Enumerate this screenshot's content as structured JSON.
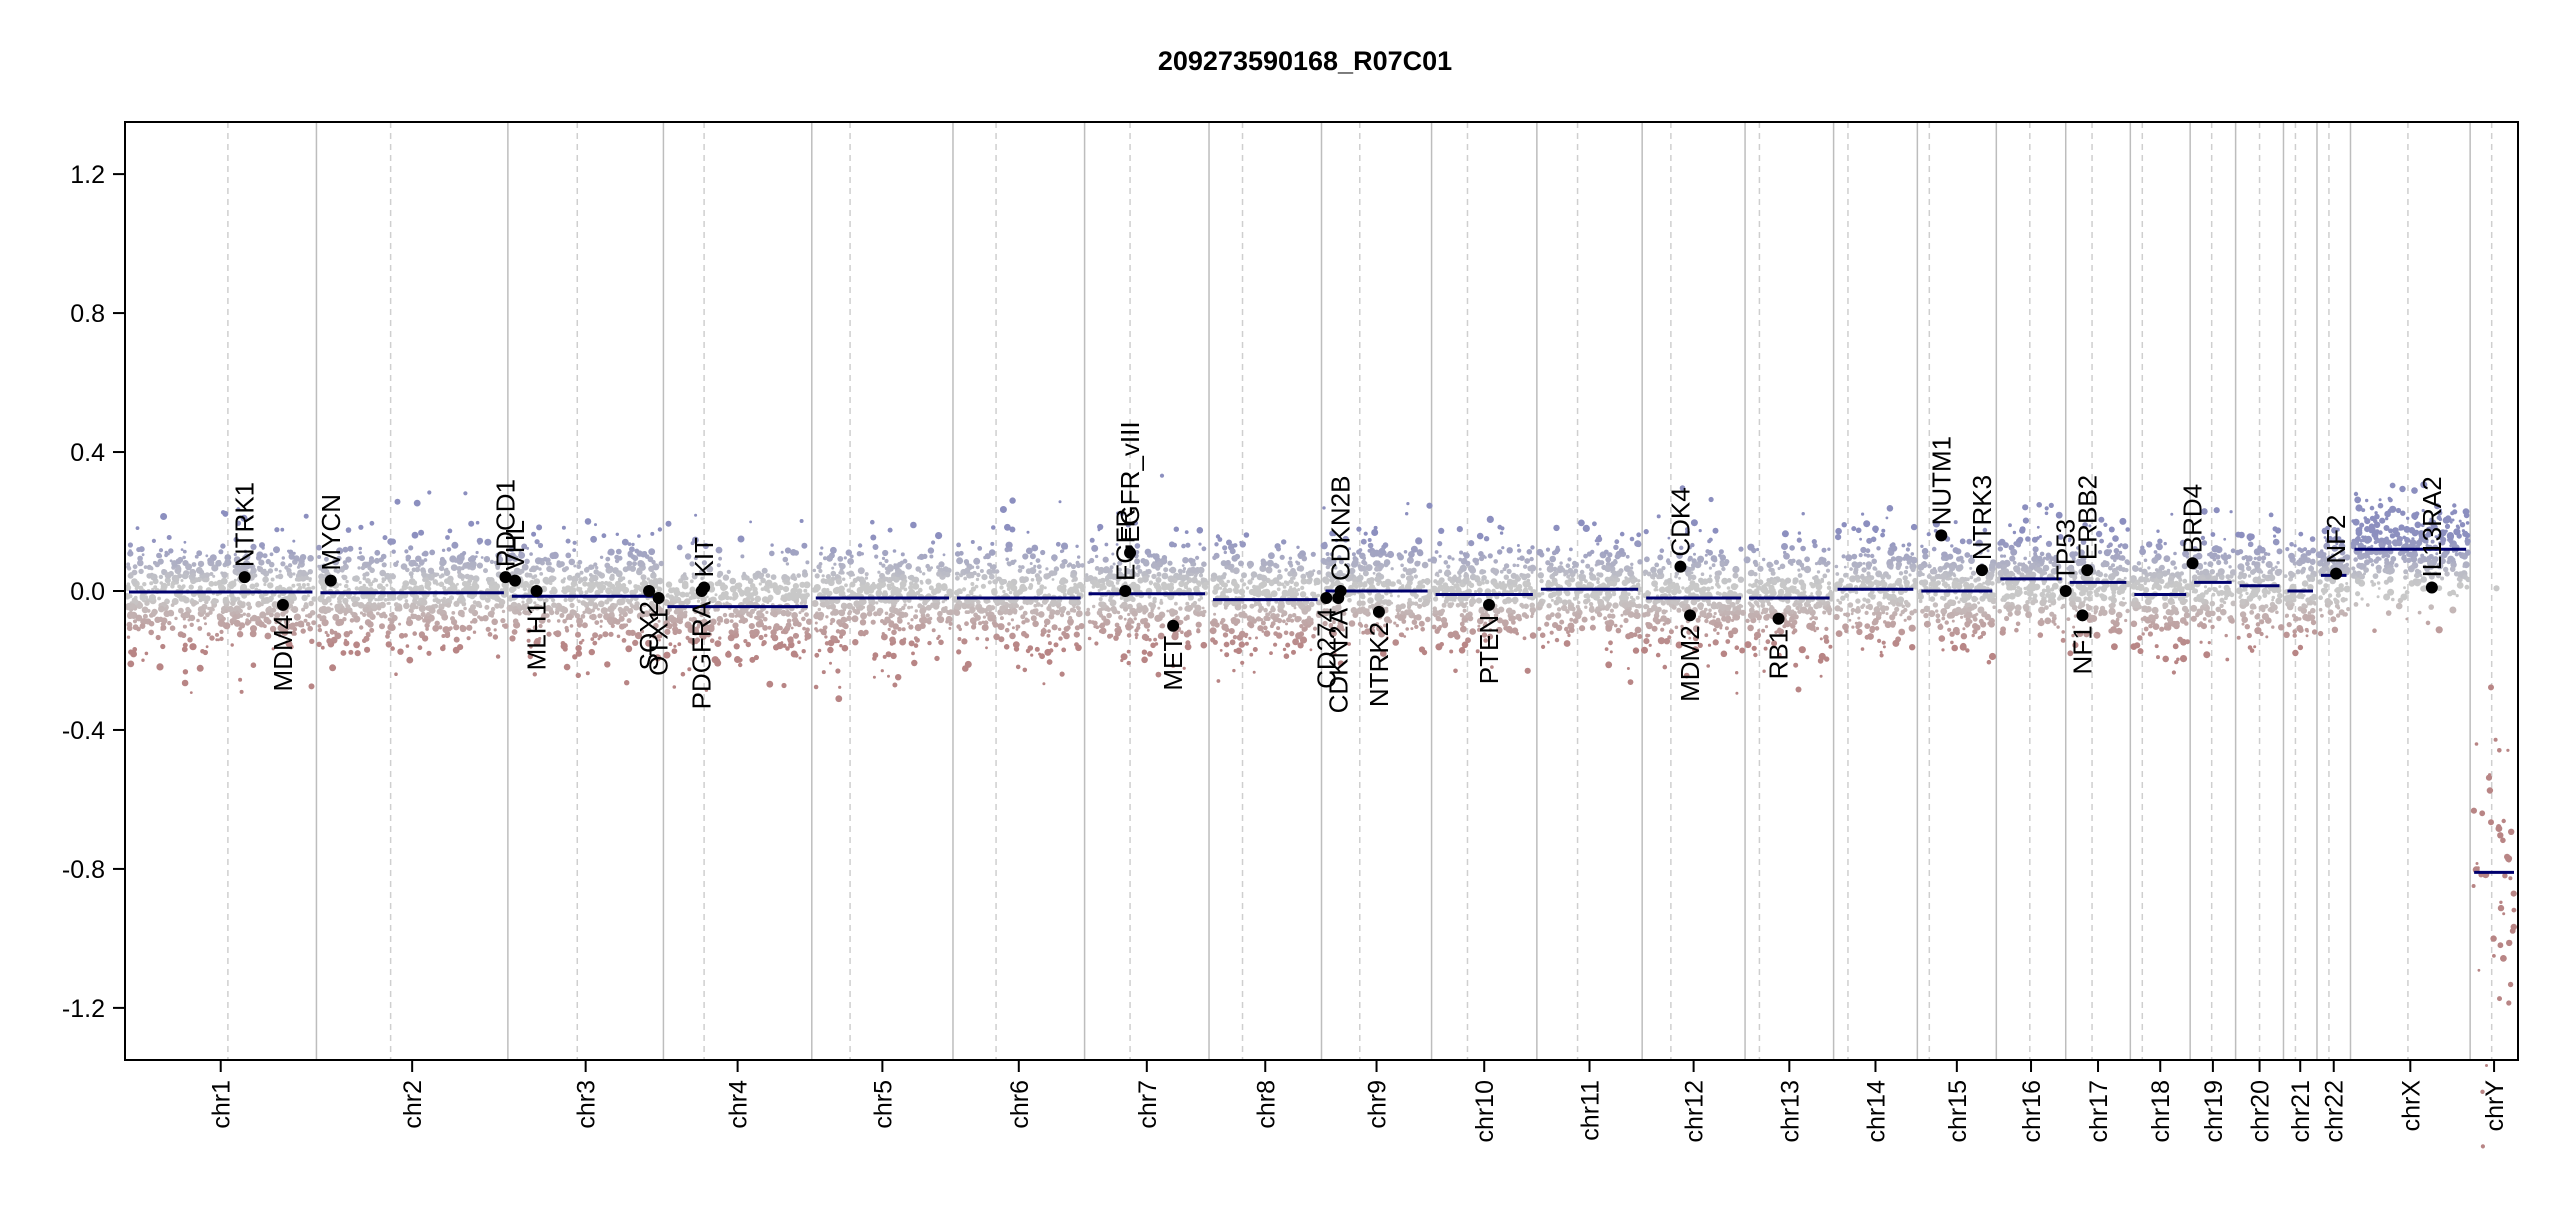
{
  "chart_data": {
    "type": "scatter",
    "title": "209273590168_R07C01",
    "xlabel": "",
    "ylabel": "",
    "ylim": [
      -1.35,
      1.35
    ],
    "yticks": [
      -1.2,
      -0.8,
      -0.4,
      0.0,
      0.4,
      0.8,
      1.2
    ],
    "ytick_labels": [
      "-1.2",
      "-0.8",
      "-0.4",
      "0.0",
      "0.4",
      "0.8",
      "1.2"
    ],
    "grid": false,
    "legend": "none",
    "colors": {
      "gain": "#8c8fbf",
      "neutral": "#c8c8c8",
      "loss": "#b88585",
      "segment": "#00006e",
      "gene_point": "#000000",
      "boundary": "#bdbdbd",
      "centromere": "#cfcfcf"
    },
    "chromosomes": [
      {
        "name": "chr1",
        "label": "chr1",
        "start": 0.0,
        "end": 0.08,
        "centromere": 0.043,
        "segment": -0.003
      },
      {
        "name": "chr2",
        "label": "chr2",
        "start": 0.08,
        "end": 0.16,
        "centromere": 0.111,
        "segment": -0.005
      },
      {
        "name": "chr3",
        "label": "chr3",
        "start": 0.16,
        "end": 0.225,
        "centromere": 0.189,
        "segment": -0.015
      },
      {
        "name": "chr4",
        "label": "chr4",
        "start": 0.225,
        "end": 0.287,
        "centromere": 0.242,
        "segment": -0.045
      },
      {
        "name": "chr5",
        "label": "chr5",
        "start": 0.287,
        "end": 0.346,
        "centromere": 0.303,
        "segment": -0.02
      },
      {
        "name": "chr6",
        "label": "chr6",
        "start": 0.346,
        "end": 0.401,
        "centromere": 0.364,
        "segment": -0.02
      },
      {
        "name": "chr7",
        "label": "chr7",
        "start": 0.401,
        "end": 0.453,
        "centromere": 0.42,
        "segment": -0.008
      },
      {
        "name": "chr8",
        "label": "chr8",
        "start": 0.453,
        "end": 0.5,
        "centromere": 0.467,
        "segment": -0.025
      },
      {
        "name": "chr9",
        "label": "chr9",
        "start": 0.5,
        "end": 0.546,
        "centromere": 0.516,
        "segment": 0.0
      },
      {
        "name": "chr10",
        "label": "chr10",
        "start": 0.546,
        "end": 0.59,
        "centromere": 0.561,
        "segment": -0.01
      },
      {
        "name": "chr11",
        "label": "chr11",
        "start": 0.59,
        "end": 0.634,
        "centromere": 0.607,
        "segment": 0.005
      },
      {
        "name": "chr12",
        "label": "chr12",
        "start": 0.634,
        "end": 0.677,
        "centromere": 0.646,
        "segment": -0.02
      },
      {
        "name": "chr13",
        "label": "chr13",
        "start": 0.677,
        "end": 0.714,
        "centromere": 0.683,
        "segment": -0.02
      },
      {
        "name": "chr14",
        "label": "chr14",
        "start": 0.714,
        "end": 0.749,
        "centromere": 0.72,
        "segment": 0.005
      },
      {
        "name": "chr15",
        "label": "chr15",
        "start": 0.749,
        "end": 0.782,
        "centromere": 0.754,
        "segment": 0.0
      },
      {
        "name": "chr16",
        "label": "chr16",
        "start": 0.782,
        "end": 0.811,
        "centromere": 0.796,
        "segment": 0.035
      },
      {
        "name": "chr17",
        "label": "chr17",
        "start": 0.811,
        "end": 0.838,
        "centromere": 0.822,
        "segment": 0.025
      },
      {
        "name": "chr18",
        "label": "chr18",
        "start": 0.838,
        "end": 0.863,
        "centromere": 0.843,
        "segment": -0.01
      },
      {
        "name": "chr19",
        "label": "chr19",
        "start": 0.863,
        "end": 0.882,
        "centromere": 0.872,
        "segment": 0.025
      },
      {
        "name": "chr20",
        "label": "chr20",
        "start": 0.882,
        "end": 0.902,
        "centromere": 0.892,
        "segment": 0.015
      },
      {
        "name": "chr21",
        "label": "chr21",
        "start": 0.902,
        "end": 0.916,
        "centromere": 0.907,
        "segment": 0.0
      },
      {
        "name": "chr22",
        "label": "chr22",
        "start": 0.916,
        "end": 0.93,
        "centromere": 0.921,
        "segment": 0.045
      },
      {
        "name": "chrX",
        "label": "chrX",
        "start": 0.93,
        "end": 0.98,
        "centromere": 0.954,
        "segment": 0.12
      },
      {
        "name": "chrY",
        "label": "chrY",
        "start": 0.98,
        "end": 1.0,
        "centromere": 0.989,
        "segment": -0.81
      }
    ],
    "genes": [
      {
        "name": "NTRK1",
        "pos": 0.05,
        "value": 0.04,
        "label_dir": "up"
      },
      {
        "name": "MDM4",
        "pos": 0.066,
        "value": -0.04,
        "label_dir": "down"
      },
      {
        "name": "MYCN",
        "pos": 0.086,
        "value": 0.03,
        "label_dir": "up"
      },
      {
        "name": "PDCD1",
        "pos": 0.159,
        "value": 0.04,
        "label_dir": "up"
      },
      {
        "name": "VHL",
        "pos": 0.163,
        "value": 0.03,
        "label_dir": "up"
      },
      {
        "name": "MLH1",
        "pos": 0.172,
        "value": 0.0,
        "label_dir": "down"
      },
      {
        "name": "SOX2",
        "pos": 0.219,
        "value": 0.0,
        "label_dir": "down"
      },
      {
        "name": "OTX1",
        "pos": 0.223,
        "value": -0.02,
        "label_dir": "down"
      },
      {
        "name": "PDGFRA",
        "pos": 0.241,
        "value": 0.0,
        "label_dir": "down"
      },
      {
        "name": "KIT",
        "pos": 0.242,
        "value": 0.01,
        "label_dir": "up"
      },
      {
        "name": "EGFR",
        "pos": 0.418,
        "value": 0.0,
        "label_dir": "up"
      },
      {
        "name": "EGFR_vIII",
        "pos": 0.42,
        "value": 0.11,
        "label_dir": "up"
      },
      {
        "name": "MET",
        "pos": 0.438,
        "value": -0.1,
        "label_dir": "down"
      },
      {
        "name": "CD274",
        "pos": 0.502,
        "value": -0.02,
        "label_dir": "down"
      },
      {
        "name": "CDKN2A",
        "pos": 0.507,
        "value": -0.02,
        "label_dir": "down"
      },
      {
        "name": "CDKN2B",
        "pos": 0.508,
        "value": 0.0,
        "label_dir": "up"
      },
      {
        "name": "NTRK2",
        "pos": 0.524,
        "value": -0.06,
        "label_dir": "down"
      },
      {
        "name": "PTEN",
        "pos": 0.57,
        "value": -0.04,
        "label_dir": "down"
      },
      {
        "name": "CDK4",
        "pos": 0.65,
        "value": 0.07,
        "label_dir": "up"
      },
      {
        "name": "MDM2",
        "pos": 0.654,
        "value": -0.07,
        "label_dir": "down"
      },
      {
        "name": "RB1",
        "pos": 0.691,
        "value": -0.08,
        "label_dir": "down"
      },
      {
        "name": "NUTM1",
        "pos": 0.759,
        "value": 0.16,
        "label_dir": "up"
      },
      {
        "name": "NTRK3",
        "pos": 0.776,
        "value": 0.06,
        "label_dir": "up"
      },
      {
        "name": "TP53",
        "pos": 0.811,
        "value": 0.0,
        "label_dir": "up"
      },
      {
        "name": "NF1",
        "pos": 0.818,
        "value": -0.07,
        "label_dir": "down"
      },
      {
        "name": "ERBB2",
        "pos": 0.82,
        "value": 0.06,
        "label_dir": "up"
      },
      {
        "name": "BRD4",
        "pos": 0.864,
        "value": 0.08,
        "label_dir": "up"
      },
      {
        "name": "NF2",
        "pos": 0.924,
        "value": 0.05,
        "label_dir": "up"
      },
      {
        "name": "IL13RA2",
        "pos": 0.964,
        "value": 0.01,
        "label_dir": "up"
      }
    ]
  }
}
